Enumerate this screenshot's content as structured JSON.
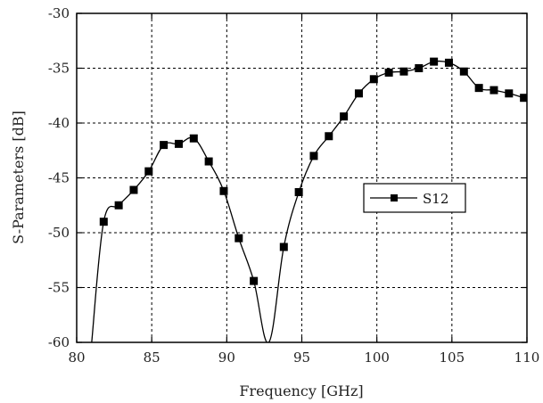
{
  "chart_data": {
    "type": "line",
    "title": "",
    "xlabel": "Frequency [GHz]",
    "ylabel": "S-Parameters [dB]",
    "xlim": [
      80,
      110
    ],
    "ylim": [
      -60,
      -30
    ],
    "xticks": [
      80,
      85,
      90,
      95,
      100,
      105,
      110
    ],
    "yticks": [
      -60,
      -55,
      -50,
      -45,
      -40,
      -35,
      -30
    ],
    "grid": true,
    "legend_position": "right-middle",
    "series": [
      {
        "name": "S12",
        "color": "#000000",
        "marker": "square",
        "points": [
          [
            81.0,
            -60.0
          ],
          [
            81.8,
            -49.0
          ],
          [
            82.8,
            -47.5
          ],
          [
            83.8,
            -46.1
          ],
          [
            84.8,
            -44.4
          ],
          [
            85.8,
            -42.0
          ],
          [
            86.8,
            -41.9
          ],
          [
            87.8,
            -41.4
          ],
          [
            88.8,
            -43.5
          ],
          [
            89.8,
            -46.2
          ],
          [
            90.8,
            -50.5
          ],
          [
            91.8,
            -54.4
          ],
          [
            92.8,
            -60.0
          ],
          [
            93.8,
            -51.3
          ],
          [
            94.8,
            -46.3
          ],
          [
            95.8,
            -43.0
          ],
          [
            96.8,
            -41.2
          ],
          [
            97.8,
            -39.4
          ],
          [
            98.8,
            -37.3
          ],
          [
            99.8,
            -36.0
          ],
          [
            100.8,
            -35.4
          ],
          [
            101.8,
            -35.3
          ],
          [
            102.8,
            -35.0
          ],
          [
            103.8,
            -34.4
          ],
          [
            104.8,
            -34.5
          ],
          [
            105.8,
            -35.3
          ],
          [
            106.8,
            -36.8
          ],
          [
            107.8,
            -37.0
          ],
          [
            108.8,
            -37.3
          ],
          [
            109.8,
            -37.7
          ]
        ],
        "marker_x": [
          81.8,
          82.8,
          83.8,
          84.8,
          85.8,
          86.8,
          87.8,
          88.8,
          89.8,
          90.8,
          91.8,
          93.8,
          94.8,
          95.8,
          96.8,
          97.8,
          98.8,
          99.8,
          100.8,
          101.8,
          102.8,
          103.8,
          104.8,
          105.8,
          106.8,
          107.8,
          108.8,
          109.8
        ]
      }
    ]
  }
}
